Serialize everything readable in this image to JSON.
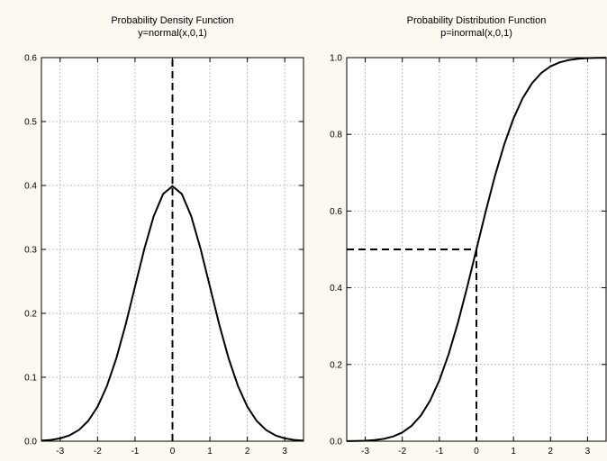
{
  "colors": {
    "background": "#fdf8f0",
    "plot_area": "#ffffff",
    "curve": "#000000",
    "grid": "#b0b0b0"
  },
  "chart_data": [
    {
      "type": "line",
      "title": "Probability Density Function",
      "subtitle": "y=normal(x,0,1)",
      "xlabel": "",
      "ylabel": "",
      "xlim": [
        -3.5,
        3.5
      ],
      "ylim": [
        0,
        0.6
      ],
      "xticks": [
        "-3",
        "-2",
        "-1",
        "0",
        "1",
        "2",
        "3"
      ],
      "xtick_values": [
        -3,
        -2,
        -1,
        0,
        1,
        2,
        3
      ],
      "yticks": [
        "0.0",
        "0.1",
        "0.2",
        "0.3",
        "0.4",
        "0.5",
        "0.6"
      ],
      "ytick_values": [
        0,
        0.1,
        0.2,
        0.3,
        0.4,
        0.5,
        0.6
      ],
      "grid": true,
      "legend": "none",
      "series": [
        {
          "x": [
            -3.5,
            -3.25,
            -3,
            -2.75,
            -2.5,
            -2.25,
            -2,
            -1.75,
            -1.5,
            -1.25,
            -1,
            -0.75,
            -0.5,
            -0.25,
            0,
            0.25,
            0.5,
            0.75,
            1,
            1.25,
            1.5,
            1.75,
            2,
            2.25,
            2.5,
            2.75,
            3,
            3.25,
            3.5
          ],
          "y": [
            0.0009,
            0.002,
            0.0044,
            0.0091,
            0.0175,
            0.0317,
            0.054,
            0.0863,
            0.1295,
            0.1826,
            0.242,
            0.3011,
            0.3521,
            0.3867,
            0.3989,
            0.3867,
            0.3521,
            0.3011,
            0.242,
            0.1826,
            0.1295,
            0.0863,
            0.054,
            0.0317,
            0.0175,
            0.0091,
            0.0044,
            0.002,
            0.0009
          ]
        }
      ],
      "reference_lines": [
        {
          "style": "dashed",
          "x1": 0,
          "y1": 0,
          "x2": 0,
          "y2": 0.6
        }
      ]
    },
    {
      "type": "line",
      "title": "Probability Distribution Function",
      "subtitle": "p=inormal(x,0,1)",
      "xlabel": "",
      "ylabel": "",
      "xlim": [
        -3.5,
        3.5
      ],
      "ylim": [
        0,
        1
      ],
      "xticks": [
        "-3",
        "-2",
        "-1",
        "0",
        "1",
        "2",
        "3"
      ],
      "xtick_values": [
        -3,
        -2,
        -1,
        0,
        1,
        2,
        3
      ],
      "yticks": [
        "0.0",
        "0.2",
        "0.4",
        "0.6",
        "0.8",
        "1.0"
      ],
      "ytick_values": [
        0,
        0.2,
        0.4,
        0.6,
        0.8,
        1.0
      ],
      "grid": true,
      "legend": "none",
      "series": [
        {
          "x": [
            -3.5,
            -3.25,
            -3,
            -2.75,
            -2.5,
            -2.25,
            -2,
            -1.75,
            -1.5,
            -1.25,
            -1,
            -0.75,
            -0.5,
            -0.25,
            0,
            0.25,
            0.5,
            0.75,
            1,
            1.25,
            1.5,
            1.75,
            2,
            2.25,
            2.5,
            2.75,
            3,
            3.25,
            3.5
          ],
          "y": [
            0.0002,
            0.0006,
            0.0013,
            0.003,
            0.0062,
            0.0122,
            0.0228,
            0.0401,
            0.0668,
            0.1056,
            0.1587,
            0.2266,
            0.3085,
            0.4013,
            0.5,
            0.5987,
            0.6915,
            0.7734,
            0.8413,
            0.8944,
            0.9332,
            0.9599,
            0.9772,
            0.9878,
            0.9938,
            0.997,
            0.9987,
            0.9994,
            0.9998
          ]
        }
      ],
      "reference_lines": [
        {
          "style": "dashed",
          "x1": -3.5,
          "y1": 0.5,
          "x2": 0,
          "y2": 0.5
        },
        {
          "style": "dashed",
          "x1": 0,
          "y1": 0.5,
          "x2": 0,
          "y2": 0
        }
      ]
    }
  ]
}
